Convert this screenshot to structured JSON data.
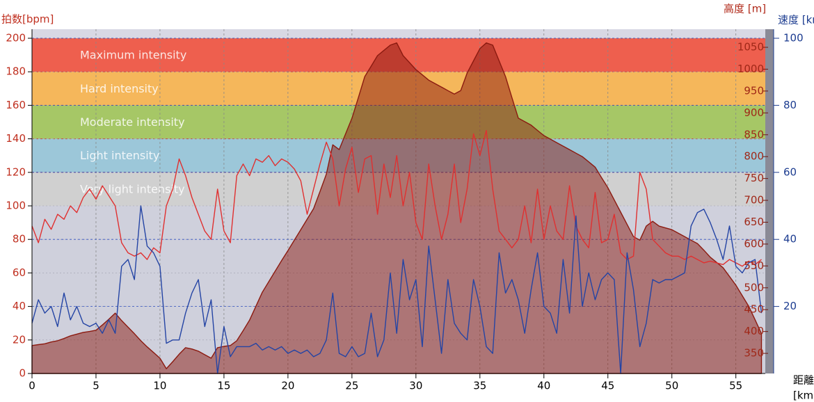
{
  "chart_data": {
    "type": "line",
    "ylabel": "拍数[bpm]",
    "y2label": "高度 [m]",
    "y3label": "速度 [km/h]",
    "xlabel": [
      "距離",
      "[km]"
    ],
    "xlim": [
      0,
      57.3
    ],
    "xticks": [
      0,
      5,
      10,
      15,
      20,
      25,
      30,
      35,
      40,
      45,
      50,
      55
    ],
    "ylim": [
      0,
      205.4
    ],
    "yticks": [
      0,
      20,
      40,
      60,
      80,
      100,
      120,
      140,
      160,
      180,
      200
    ],
    "y2lim": [
      304,
      1091.4
    ],
    "y2ticks": [
      350,
      400,
      450,
      500,
      550,
      600,
      650,
      700,
      750,
      800,
      850,
      900,
      950,
      1000,
      1050
    ],
    "y3lim": [
      0,
      102.7
    ],
    "y3ticks": [
      20,
      40,
      60,
      80,
      100
    ],
    "grid": true,
    "zones": [
      {
        "name": "Maximum intensity",
        "from": 180,
        "to": 200,
        "color": "#ee5f4e"
      },
      {
        "name": "Hard intensity",
        "from": 160,
        "to": 180,
        "color": "#f5b75b"
      },
      {
        "name": "Moderate intensity",
        "from": 140,
        "to": 160,
        "color": "#a6c766"
      },
      {
        "name": "Light intensity",
        "from": 120,
        "to": 140,
        "color": "#9cc7d9"
      },
      {
        "name": "Very light intensity",
        "from": 100,
        "to": 120,
        "color": "#d0d0d0"
      }
    ],
    "x": [
      0,
      0.5,
      1,
      1.5,
      2,
      2.5,
      3,
      3.5,
      4,
      4.5,
      5,
      5.5,
      6,
      6.5,
      7,
      7.5,
      8,
      8.5,
      9,
      9.5,
      10,
      10.5,
      11,
      11.5,
      12,
      12.5,
      13,
      13.5,
      14,
      14.5,
      15,
      15.5,
      16,
      16.5,
      17,
      17.5,
      18,
      18.5,
      19,
      19.5,
      20,
      20.5,
      21,
      21.5,
      22,
      22.5,
      23,
      23.5,
      24,
      24.5,
      25,
      25.5,
      26,
      26.5,
      27,
      27.5,
      28,
      28.5,
      29,
      29.5,
      30,
      30.5,
      31,
      31.5,
      32,
      32.5,
      33,
      33.5,
      34,
      34.5,
      35,
      35.5,
      36,
      36.5,
      37,
      37.5,
      38,
      38.5,
      39,
      39.5,
      40,
      40.5,
      41,
      41.5,
      42,
      42.5,
      43,
      43.5,
      44,
      44.5,
      45,
      45.5,
      46,
      46.5,
      47,
      47.5,
      48,
      48.5,
      49,
      49.5,
      50,
      50.5,
      51,
      51.5,
      52,
      52.5,
      53,
      53.5,
      54,
      54.5,
      55,
      55.5,
      56,
      56.5,
      57
    ],
    "series": [
      {
        "name": "高度",
        "axis": "y2",
        "kind": "area",
        "color": "#8b1a10",
        "values": [
          368,
          370,
          372,
          376,
          379,
          384,
          390,
          394,
          398,
          400,
          403,
          415,
          428,
          442,
          425,
          410,
          395,
          379,
          365,
          352,
          339,
          315,
          331,
          348,
          363,
          360,
          355,
          347,
          339,
          363,
          366,
          368,
          379,
          402,
          426,
          458,
          490,
          514,
          538,
          562,
          585,
          609,
          633,
          657,
          681,
          720,
          760,
          827,
          816,
          852,
          888,
          935,
          983,
          1007,
          1031,
          1043,
          1055,
          1060,
          1031,
          1015,
          999,
          987,
          975,
          967,
          959,
          951,
          943,
          951,
          991,
          1019,
          1047,
          1060,
          1055,
          1019,
          983,
          935,
          888,
          880,
          872,
          860,
          848,
          840,
          832,
          824,
          816,
          808,
          800,
          788,
          776,
          752,
          729,
          701,
          673,
          645,
          617,
          609,
          641,
          652,
          641,
          637,
          633,
          625,
          617,
          609,
          601,
          586,
          570,
          558,
          546,
          526,
          506,
          482,
          458,
          427,
          395
        ]
      },
      {
        "name": "拍数",
        "axis": "y",
        "kind": "line",
        "color": "#e03030",
        "values": [
          88,
          78,
          92,
          86,
          95,
          92,
          100,
          96,
          105,
          110,
          104,
          112,
          106,
          100,
          78,
          72,
          70,
          72,
          68,
          75,
          72,
          100,
          110,
          128,
          118,
          105,
          95,
          85,
          80,
          110,
          85,
          78,
          118,
          125,
          118,
          128,
          126,
          130,
          124,
          128,
          126,
          122,
          115,
          95,
          110,
          125,
          138,
          128,
          100,
          122,
          135,
          108,
          128,
          130,
          95,
          125,
          105,
          130,
          100,
          120,
          90,
          80,
          125,
          100,
          80,
          95,
          125,
          90,
          110,
          143,
          130,
          145,
          110,
          85,
          80,
          75,
          80,
          100,
          78,
          110,
          80,
          100,
          85,
          80,
          112,
          88,
          80,
          75,
          108,
          78,
          80,
          95,
          72,
          68,
          70,
          120,
          110,
          80,
          76,
          72,
          70,
          70,
          68,
          70,
          68,
          66,
          67,
          66,
          65,
          68,
          66,
          64,
          67,
          65,
          68
        ]
      },
      {
        "name": "速度",
        "axis": "y3",
        "kind": "line",
        "color": "#2444a4",
        "values": [
          15,
          22,
          18,
          20,
          14,
          24,
          16,
          20,
          15,
          14,
          15,
          12,
          16,
          12,
          32,
          34,
          28,
          50,
          38,
          36,
          32,
          9,
          10,
          10,
          18,
          24,
          28,
          14,
          22,
          0,
          14,
          5,
          8,
          8,
          8,
          9,
          7,
          8,
          7,
          8,
          6,
          7,
          6,
          7,
          5,
          6,
          10,
          24,
          6,
          5,
          8,
          5,
          6,
          18,
          5,
          10,
          30,
          12,
          34,
          22,
          28,
          8,
          38,
          22,
          6,
          28,
          15,
          12,
          10,
          28,
          20,
          8,
          6,
          36,
          24,
          28,
          22,
          12,
          25,
          36,
          20,
          18,
          12,
          34,
          18,
          47,
          20,
          30,
          22,
          28,
          30,
          28,
          0,
          36,
          25,
          8,
          15,
          28,
          27,
          28,
          28,
          29,
          30,
          44,
          48,
          49,
          45,
          40,
          34,
          44,
          32,
          30,
          33,
          34,
          18
        ]
      }
    ]
  }
}
